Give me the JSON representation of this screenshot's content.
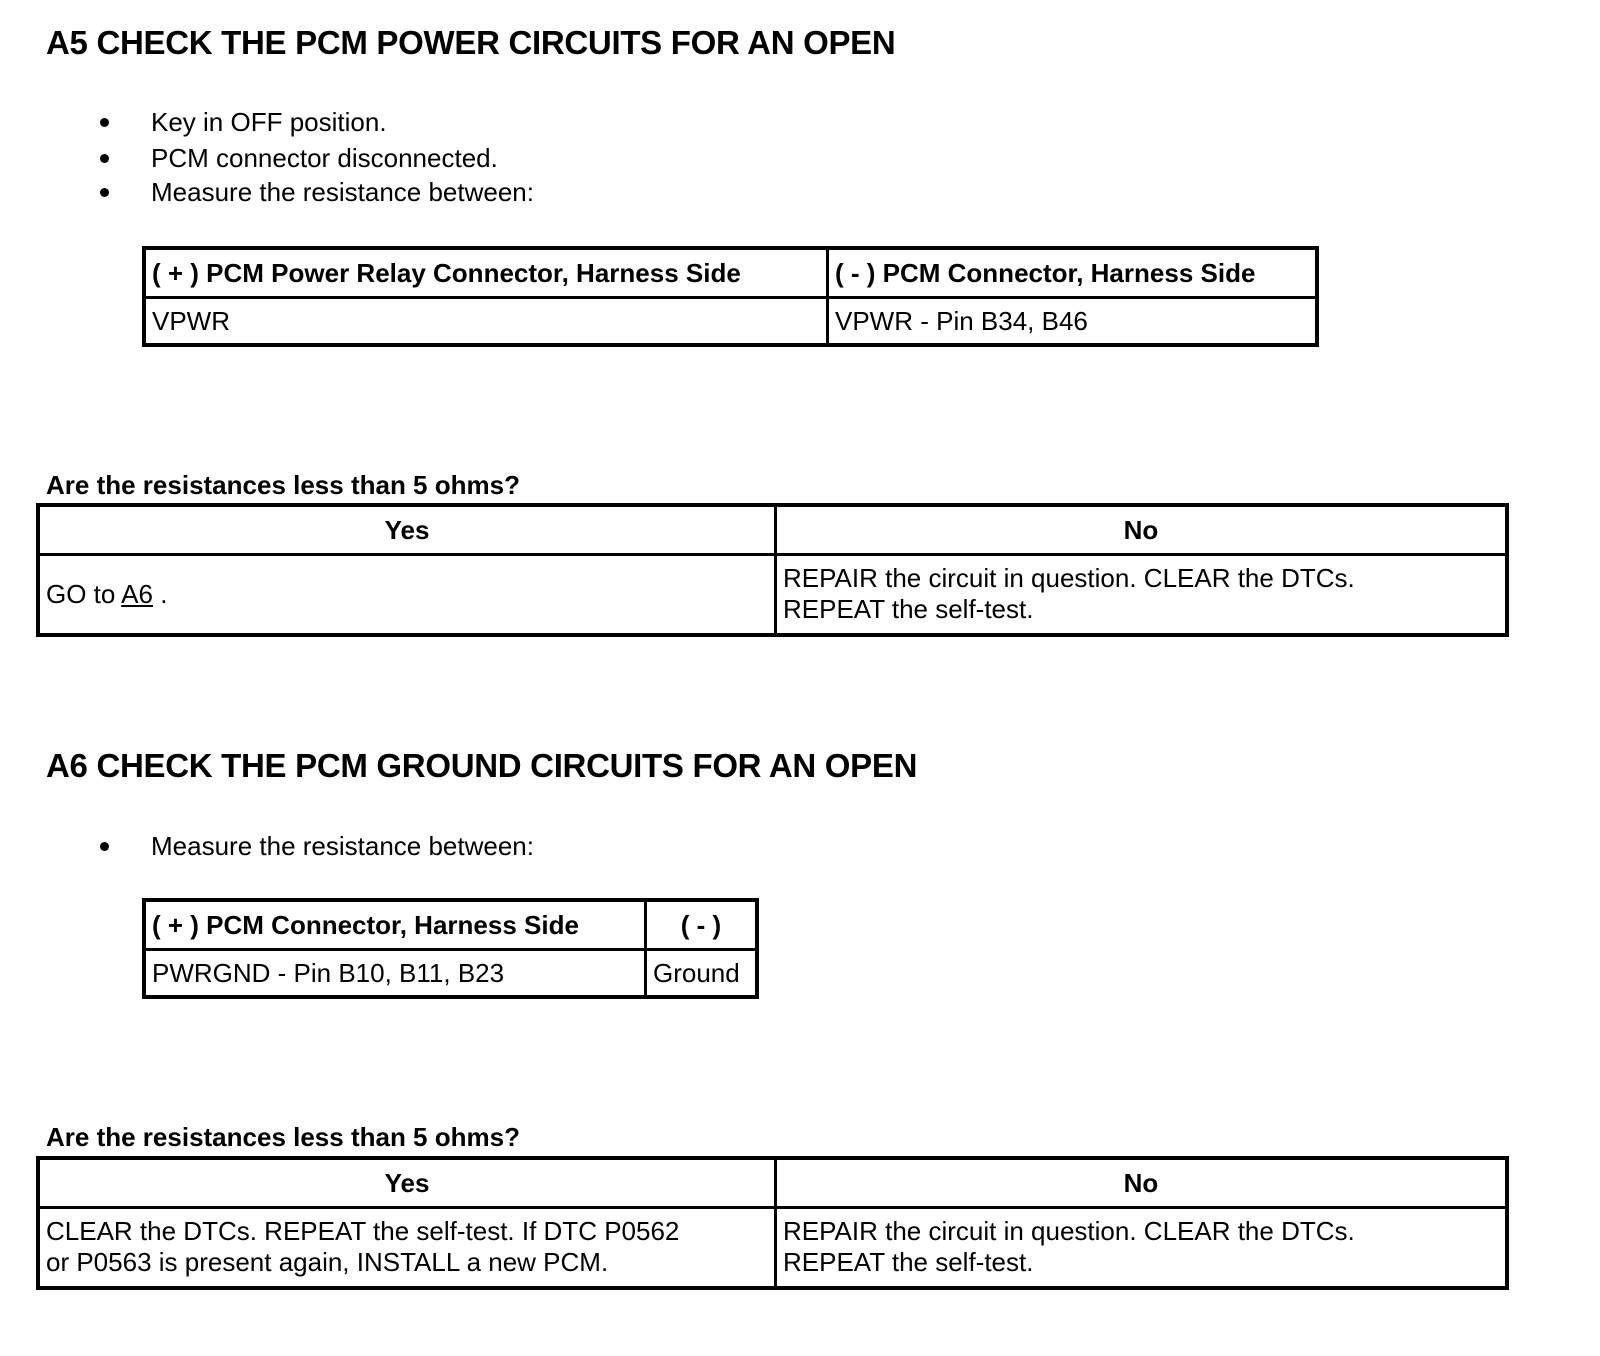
{
  "a5": {
    "title": "A5 CHECK THE PCM POWER CIRCUITS FOR AN OPEN",
    "bullets": [
      "Key in OFF position.",
      "PCM connector disconnected.",
      "Measure the resistance between:"
    ],
    "measure_table": {
      "headers": [
        "( + ) PCM Power Relay Connector, Harness Side",
        "( - ) PCM Connector, Harness Side"
      ],
      "row": [
        "VPWR",
        "VPWR - Pin B34, B46"
      ]
    },
    "question": "Are the resistances less than 5 ohms?",
    "result_table": {
      "headers": [
        "Yes",
        "No"
      ],
      "yes_prefix": "GO to ",
      "yes_link": "A6",
      "yes_suffix": " .",
      "no_line1": "REPAIR the circuit in question. CLEAR the DTCs.",
      "no_line2": "REPEAT the self-test."
    }
  },
  "a6": {
    "title": "A6 CHECK THE PCM GROUND CIRCUITS FOR AN OPEN",
    "bullets": [
      "Measure the resistance between:"
    ],
    "measure_table": {
      "headers": [
        "( + ) PCM Connector, Harness Side",
        "( - )"
      ],
      "row": [
        "PWRGND - Pin B10, B11, B23",
        "Ground"
      ]
    },
    "question": "Are the resistances less than 5 ohms?",
    "result_table": {
      "headers": [
        "Yes",
        "No"
      ],
      "yes_line1": "CLEAR the DTCs. REPEAT the self-test. If DTC P0562",
      "yes_line2": "or P0563 is present again, INSTALL a new PCM.",
      "no_line1": "REPAIR the circuit in question. CLEAR the DTCs.",
      "no_line2": "REPEAT the self-test."
    }
  }
}
